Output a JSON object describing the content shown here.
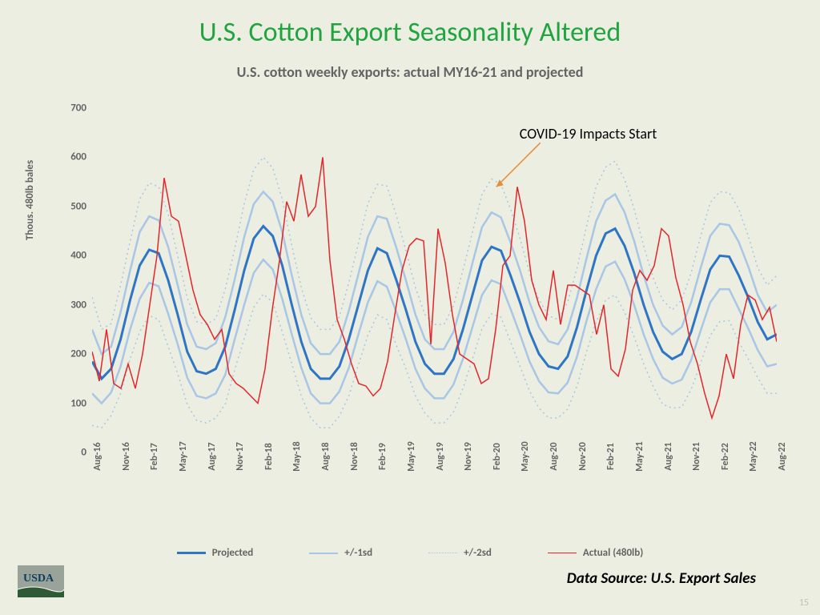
{
  "slide": {
    "title": "U.S. Cotton Export Seasonality Altered",
    "title_color": "#1fa43f",
    "title_fontsize": 34,
    "background_color": "#eceee1",
    "number": "15"
  },
  "chart": {
    "type": "line",
    "title": "U.S. cotton weekly exports: actual MY16-21 and projected",
    "title_color": "#646464",
    "title_fontsize": 18,
    "y_axis_label": "Thous. 480lb bales",
    "ylim": [
      0,
      700
    ],
    "ytick_step": 100,
    "y_ticks": [
      0,
      100,
      200,
      300,
      400,
      500,
      600,
      700
    ],
    "x_ticks": [
      "Aug-16",
      "Nov-16",
      "Feb-17",
      "May-17",
      "Aug-17",
      "Nov-17",
      "Feb-18",
      "May-18",
      "Aug-18",
      "Nov-18",
      "Feb-19",
      "May-19",
      "Aug-19",
      "Nov-19",
      "Feb-20",
      "May-20",
      "Aug-20",
      "Nov-20",
      "Feb-21",
      "May-21",
      "Aug-21",
      "Nov-21",
      "Feb-22",
      "May-22",
      "Aug-22"
    ],
    "grid": false,
    "series": {
      "projected": {
        "label": "Projected",
        "color": "#2e75c6",
        "line_width": 3.0,
        "dash": "solid",
        "values": [
          185,
          150,
          170,
          230,
          310,
          380,
          412,
          405,
          350,
          280,
          205,
          165,
          160,
          170,
          215,
          290,
          370,
          435,
          460,
          440,
          380,
          300,
          225,
          170,
          150,
          150,
          175,
          230,
          300,
          370,
          415,
          405,
          350,
          290,
          225,
          180,
          160,
          160,
          190,
          250,
          320,
          390,
          418,
          410,
          360,
          305,
          245,
          200,
          175,
          170,
          195,
          255,
          330,
          400,
          445,
          455,
          420,
          365,
          300,
          245,
          205,
          190,
          200,
          245,
          310,
          372,
          400,
          398,
          360,
          315,
          265,
          230,
          240
        ]
      },
      "sd1_upper": {
        "label": "+/-1sd",
        "color": "#a8c6e5",
        "line_width": 2.5,
        "dash": "solid",
        "values": [
          250,
          200,
          215,
          285,
          370,
          448,
          480,
          472,
          418,
          340,
          260,
          215,
          210,
          222,
          275,
          352,
          438,
          505,
          530,
          510,
          448,
          360,
          280,
          222,
          200,
          200,
          225,
          288,
          362,
          438,
          480,
          475,
          416,
          350,
          280,
          230,
          210,
          210,
          245,
          310,
          385,
          458,
          488,
          478,
          427,
          370,
          305,
          255,
          226,
          220,
          250,
          315,
          395,
          470,
          512,
          525,
          488,
          430,
          360,
          300,
          258,
          240,
          255,
          305,
          375,
          440,
          465,
          462,
          428,
          378,
          320,
          285,
          300
        ]
      },
      "sd1_lower": {
        "label": "+/-1sd (lower)",
        "color": "#a8c6e5",
        "line_width": 2.5,
        "dash": "solid",
        "values": [
          120,
          100,
          122,
          175,
          250,
          312,
          345,
          338,
          282,
          220,
          152,
          115,
          110,
          120,
          158,
          230,
          300,
          365,
          392,
          372,
          312,
          240,
          172,
          120,
          100,
          100,
          124,
          172,
          240,
          305,
          348,
          337,
          285,
          230,
          170,
          130,
          110,
          110,
          138,
          190,
          255,
          320,
          350,
          342,
          292,
          240,
          185,
          145,
          122,
          120,
          142,
          195,
          268,
          332,
          378,
          388,
          352,
          300,
          240,
          190,
          152,
          140,
          148,
          188,
          248,
          305,
          332,
          332,
          292,
          252,
          208,
          175,
          180
        ]
      },
      "sd2_upper": {
        "label": "+/-2sd",
        "color": "#a8c6e5",
        "line_width": 1.5,
        "dash": "dotted",
        "values": [
          315,
          250,
          262,
          340,
          430,
          515,
          548,
          540,
          485,
          400,
          314,
          266,
          260,
          272,
          332,
          414,
          506,
          575,
          600,
          578,
          515,
          420,
          335,
          274,
          250,
          250,
          276,
          345,
          425,
          506,
          545,
          542,
          482,
          410,
          335,
          280,
          260,
          260,
          298,
          370,
          448,
          525,
          556,
          545,
          495,
          435,
          365,
          310,
          278,
          270,
          305,
          375,
          460,
          540,
          580,
          592,
          555,
          495,
          420,
          355,
          310,
          290,
          310,
          365,
          440,
          508,
          530,
          528,
          495,
          440,
          375,
          340,
          360
        ]
      },
      "sd2_lower": {
        "label": "+/-2sd (lower)",
        "color": "#a8c6e5",
        "line_width": 1.5,
        "dash": "dotted",
        "values": [
          55,
          50,
          75,
          120,
          190,
          245,
          278,
          270,
          215,
          160,
          98,
          65,
          60,
          70,
          98,
          168,
          232,
          295,
          322,
          305,
          245,
          180,
          115,
          70,
          50,
          50,
          74,
          115,
          178,
          238,
          280,
          270,
          218,
          170,
          115,
          80,
          60,
          60,
          82,
          130,
          190,
          252,
          282,
          275,
          225,
          175,
          125,
          90,
          70,
          70,
          88,
          135,
          205,
          265,
          310,
          320,
          285,
          235,
          180,
          135,
          98,
          90,
          92,
          128,
          182,
          238,
          266,
          268,
          225,
          190,
          152,
          120,
          120
        ]
      },
      "actual": {
        "label": "Actual (480lb)",
        "color": "#e3262b",
        "line_width": 1.5,
        "dash": "solid",
        "values": [
          205,
          145,
          250,
          140,
          130,
          180,
          130,
          200,
          300,
          400,
          558,
          480,
          470,
          400,
          330,
          280,
          260,
          230,
          250,
          160,
          140,
          130,
          115,
          100,
          170,
          290,
          390,
          510,
          470,
          565,
          480,
          500,
          600,
          390,
          270,
          230,
          180,
          140,
          135,
          115,
          130,
          185,
          280,
          370,
          420,
          435,
          430,
          220,
          455,
          385,
          280,
          200,
          190,
          180,
          140,
          150,
          250,
          380,
          400,
          540,
          470,
          350,
          300,
          270,
          370,
          260,
          340,
          340,
          330,
          320,
          240,
          300,
          170,
          155,
          210,
          330,
          370,
          350,
          380,
          455,
          440,
          355,
          300,
          225,
          180,
          120,
          70,
          115,
          200,
          150,
          260,
          320,
          310,
          270,
          295,
          225
        ]
      }
    },
    "annotation": {
      "text": "COVID-19 Impacts Start",
      "x_label": "Feb-20",
      "arrow_color": "#e08e3f",
      "text_fontsize": 18
    },
    "legend_items": [
      {
        "label": "Projected",
        "color": "#2e75c6",
        "dash": "solid",
        "width": 3
      },
      {
        "label": "+/-1sd",
        "color": "#a8c6e5",
        "dash": "solid",
        "width": 2.5
      },
      {
        "label": "+/-2sd",
        "color": "#a8c6e5",
        "dash": "dotted",
        "width": 1.5
      },
      {
        "label": "Actual (480lb)",
        "color": "#e3262b",
        "dash": "solid",
        "width": 1.5
      }
    ]
  },
  "footer": {
    "data_source": "Data Source: U.S. Export Sales",
    "logo_text": "USDA"
  }
}
